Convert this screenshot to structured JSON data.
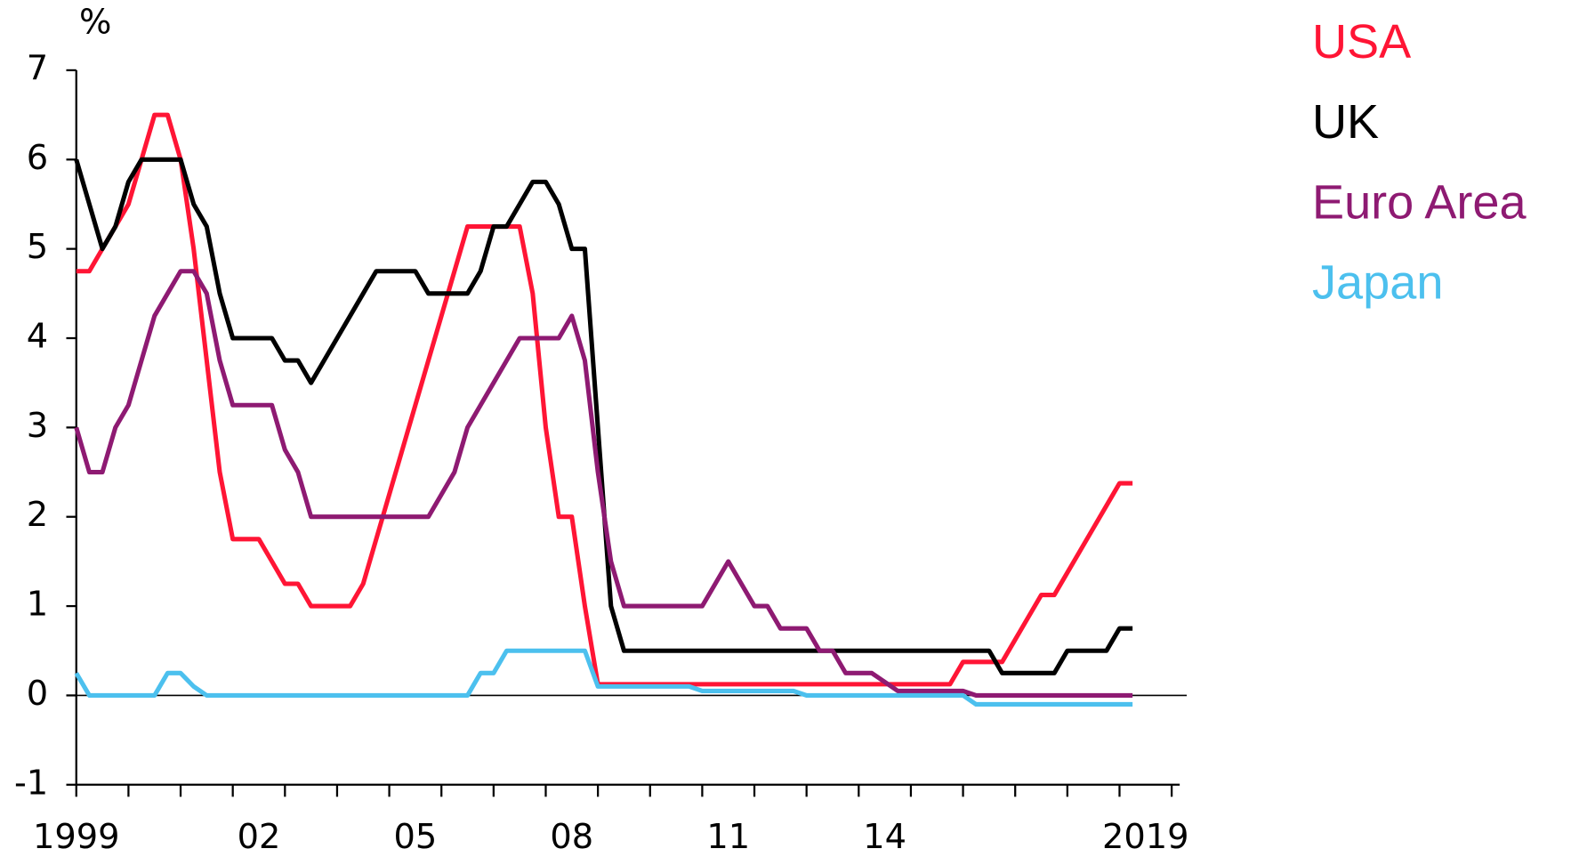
{
  "chart_data": {
    "type": "line",
    "y_unit_label": "%",
    "x": [
      1999,
      1999.25,
      1999.5,
      1999.75,
      2000,
      2000.25,
      2000.5,
      2000.75,
      2001,
      2001.25,
      2001.5,
      2001.75,
      2002,
      2002.25,
      2002.5,
      2002.75,
      2003,
      2003.25,
      2003.5,
      2003.75,
      2004,
      2004.25,
      2004.5,
      2004.75,
      2005,
      2005.25,
      2005.5,
      2005.75,
      2006,
      2006.25,
      2006.5,
      2006.75,
      2007,
      2007.25,
      2007.5,
      2007.75,
      2008,
      2008.25,
      2008.5,
      2008.75,
      2009,
      2009.25,
      2009.5,
      2009.75,
      2010,
      2010.25,
      2010.5,
      2010.75,
      2011,
      2011.25,
      2011.5,
      2011.75,
      2012,
      2012.25,
      2012.5,
      2012.75,
      2013,
      2013.25,
      2013.5,
      2013.75,
      2014,
      2014.25,
      2014.5,
      2014.75,
      2015,
      2015.25,
      2015.5,
      2015.75,
      2016,
      2016.25,
      2016.5,
      2016.75,
      2017,
      2017.25,
      2017.5,
      2017.75,
      2018,
      2018.25,
      2018.5,
      2018.75,
      2019,
      2019.25
    ],
    "series": [
      {
        "name": "USA",
        "color": "#ff1535",
        "values": [
          4.75,
          4.75,
          5.0,
          5.25,
          5.5,
          6.0,
          6.5,
          6.5,
          6.0,
          5.0,
          3.75,
          2.5,
          1.75,
          1.75,
          1.75,
          1.5,
          1.25,
          1.25,
          1.0,
          1.0,
          1.0,
          1.0,
          1.25,
          1.75,
          2.25,
          2.75,
          3.25,
          3.75,
          4.25,
          4.75,
          5.25,
          5.25,
          5.25,
          5.25,
          5.25,
          4.5,
          3.0,
          2.0,
          2.0,
          1.0,
          0.125,
          0.125,
          0.125,
          0.125,
          0.125,
          0.125,
          0.125,
          0.125,
          0.125,
          0.125,
          0.125,
          0.125,
          0.125,
          0.125,
          0.125,
          0.125,
          0.125,
          0.125,
          0.125,
          0.125,
          0.125,
          0.125,
          0.125,
          0.125,
          0.125,
          0.125,
          0.125,
          0.125,
          0.375,
          0.375,
          0.375,
          0.375,
          0.625,
          0.875,
          1.125,
          1.125,
          1.375,
          1.625,
          1.875,
          2.125,
          2.375,
          2.375
        ]
      },
      {
        "name": "UK",
        "color": "#000000",
        "values": [
          6.0,
          5.5,
          5.0,
          5.25,
          5.75,
          6.0,
          6.0,
          6.0,
          6.0,
          5.5,
          5.25,
          4.5,
          4.0,
          4.0,
          4.0,
          4.0,
          3.75,
          3.75,
          3.5,
          3.75,
          4.0,
          4.25,
          4.5,
          4.75,
          4.75,
          4.75,
          4.75,
          4.5,
          4.5,
          4.5,
          4.5,
          4.75,
          5.25,
          5.25,
          5.5,
          5.75,
          5.75,
          5.5,
          5.0,
          5.0,
          3.0,
          1.0,
          0.5,
          0.5,
          0.5,
          0.5,
          0.5,
          0.5,
          0.5,
          0.5,
          0.5,
          0.5,
          0.5,
          0.5,
          0.5,
          0.5,
          0.5,
          0.5,
          0.5,
          0.5,
          0.5,
          0.5,
          0.5,
          0.5,
          0.5,
          0.5,
          0.5,
          0.5,
          0.5,
          0.5,
          0.5,
          0.25,
          0.25,
          0.25,
          0.25,
          0.25,
          0.5,
          0.5,
          0.5,
          0.5,
          0.75,
          0.75
        ]
      },
      {
        "name": "Euro Area",
        "color": "#8e1a72",
        "values": [
          3.0,
          2.5,
          2.5,
          3.0,
          3.25,
          3.75,
          4.25,
          4.5,
          4.75,
          4.75,
          4.5,
          3.75,
          3.25,
          3.25,
          3.25,
          3.25,
          2.75,
          2.5,
          2.0,
          2.0,
          2.0,
          2.0,
          2.0,
          2.0,
          2.0,
          2.0,
          2.0,
          2.0,
          2.25,
          2.5,
          3.0,
          3.25,
          3.5,
          3.75,
          4.0,
          4.0,
          4.0,
          4.0,
          4.25,
          3.75,
          2.5,
          1.5,
          1.0,
          1.0,
          1.0,
          1.0,
          1.0,
          1.0,
          1.0,
          1.25,
          1.5,
          1.25,
          1.0,
          1.0,
          0.75,
          0.75,
          0.75,
          0.5,
          0.5,
          0.25,
          0.25,
          0.25,
          0.15,
          0.05,
          0.05,
          0.05,
          0.05,
          0.05,
          0.05,
          0.0,
          0.0,
          0.0,
          0.0,
          0.0,
          0.0,
          0.0,
          0.0,
          0.0,
          0.0,
          0.0,
          0.0,
          0.0
        ]
      },
      {
        "name": "Japan",
        "color": "#4cc0ee",
        "values": [
          0.25,
          0,
          0,
          0,
          0,
          0,
          0,
          0.25,
          0.25,
          0.1,
          0,
          0,
          0,
          0,
          0,
          0,
          0,
          0,
          0,
          0,
          0,
          0,
          0,
          0,
          0,
          0,
          0,
          0,
          0,
          0,
          0,
          0.25,
          0.25,
          0.5,
          0.5,
          0.5,
          0.5,
          0.5,
          0.5,
          0.5,
          0.1,
          0.1,
          0.1,
          0.1,
          0.1,
          0.1,
          0.1,
          0.1,
          0.05,
          0.05,
          0.05,
          0.05,
          0.05,
          0.05,
          0.05,
          0.05,
          0,
          0,
          0,
          0,
          0,
          0,
          0,
          0,
          0,
          0,
          0,
          0,
          0,
          -0.1,
          -0.1,
          -0.1,
          -0.1,
          -0.1,
          -0.1,
          -0.1,
          -0.1,
          -0.1,
          -0.1,
          -0.1,
          -0.1,
          -0.1
        ]
      }
    ],
    "xlim": [
      1999,
      2020
    ],
    "xticks": [
      {
        "value": 1999,
        "label": "1999"
      },
      {
        "value": 2002.5,
        "label": "02"
      },
      {
        "value": 2005.5,
        "label": "05"
      },
      {
        "value": 2008.5,
        "label": "08"
      },
      {
        "value": 2011.5,
        "label": "11"
      },
      {
        "value": 2014.5,
        "label": "14"
      },
      {
        "value": 2019.5,
        "label": "2019"
      }
    ],
    "x_minor_ticks": [
      1999,
      2000,
      2001,
      2002,
      2003,
      2004,
      2005,
      2006,
      2007,
      2008,
      2009,
      2010,
      2011,
      2012,
      2013,
      2014,
      2015,
      2016,
      2017,
      2018,
      2019,
      2020
    ],
    "ylim": [
      -1,
      7
    ],
    "yticks": [
      -1,
      0,
      1,
      2,
      3,
      4,
      5,
      6,
      7
    ],
    "zero_line": 0,
    "legend": "right"
  }
}
